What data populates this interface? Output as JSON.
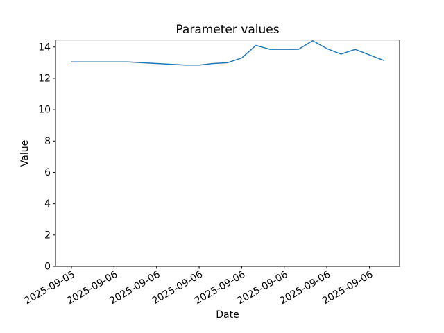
{
  "figure": {
    "background_color": "#ffffff",
    "text_color": "#000000"
  },
  "chart_data": {
    "type": "line",
    "title": "Parameter values",
    "xlabel": "Date",
    "ylabel": "Value",
    "line_color": "#1f77b4",
    "grid": false,
    "legend": null,
    "x": [
      0,
      1,
      2,
      3,
      4,
      5,
      6,
      7,
      8,
      9,
      10,
      11,
      12,
      13,
      14,
      15,
      16,
      17,
      18,
      19,
      20,
      21,
      22
    ],
    "values": [
      13.05,
      13.05,
      13.05,
      13.05,
      13.05,
      13.0,
      12.95,
      12.9,
      12.85,
      12.85,
      12.95,
      13.0,
      13.3,
      14.1,
      13.85,
      13.85,
      13.85,
      14.4,
      13.9,
      13.55,
      13.85,
      13.5,
      13.15
    ],
    "ylim": [
      0,
      14.45
    ],
    "y_ticks": [
      0,
      2,
      4,
      6,
      8,
      10,
      12,
      14
    ],
    "x_tick_point_indices": [
      0,
      3,
      6,
      9,
      12,
      15,
      18,
      21
    ],
    "x_tick_labels": [
      "2025-09-05",
      "2025-09-06",
      "2025-09-06",
      "2025-09-06",
      "2025-09-06",
      "2025-09-06",
      "2025-09-06",
      "2025-09-06"
    ],
    "x_tick_rotation_deg": 30
  }
}
